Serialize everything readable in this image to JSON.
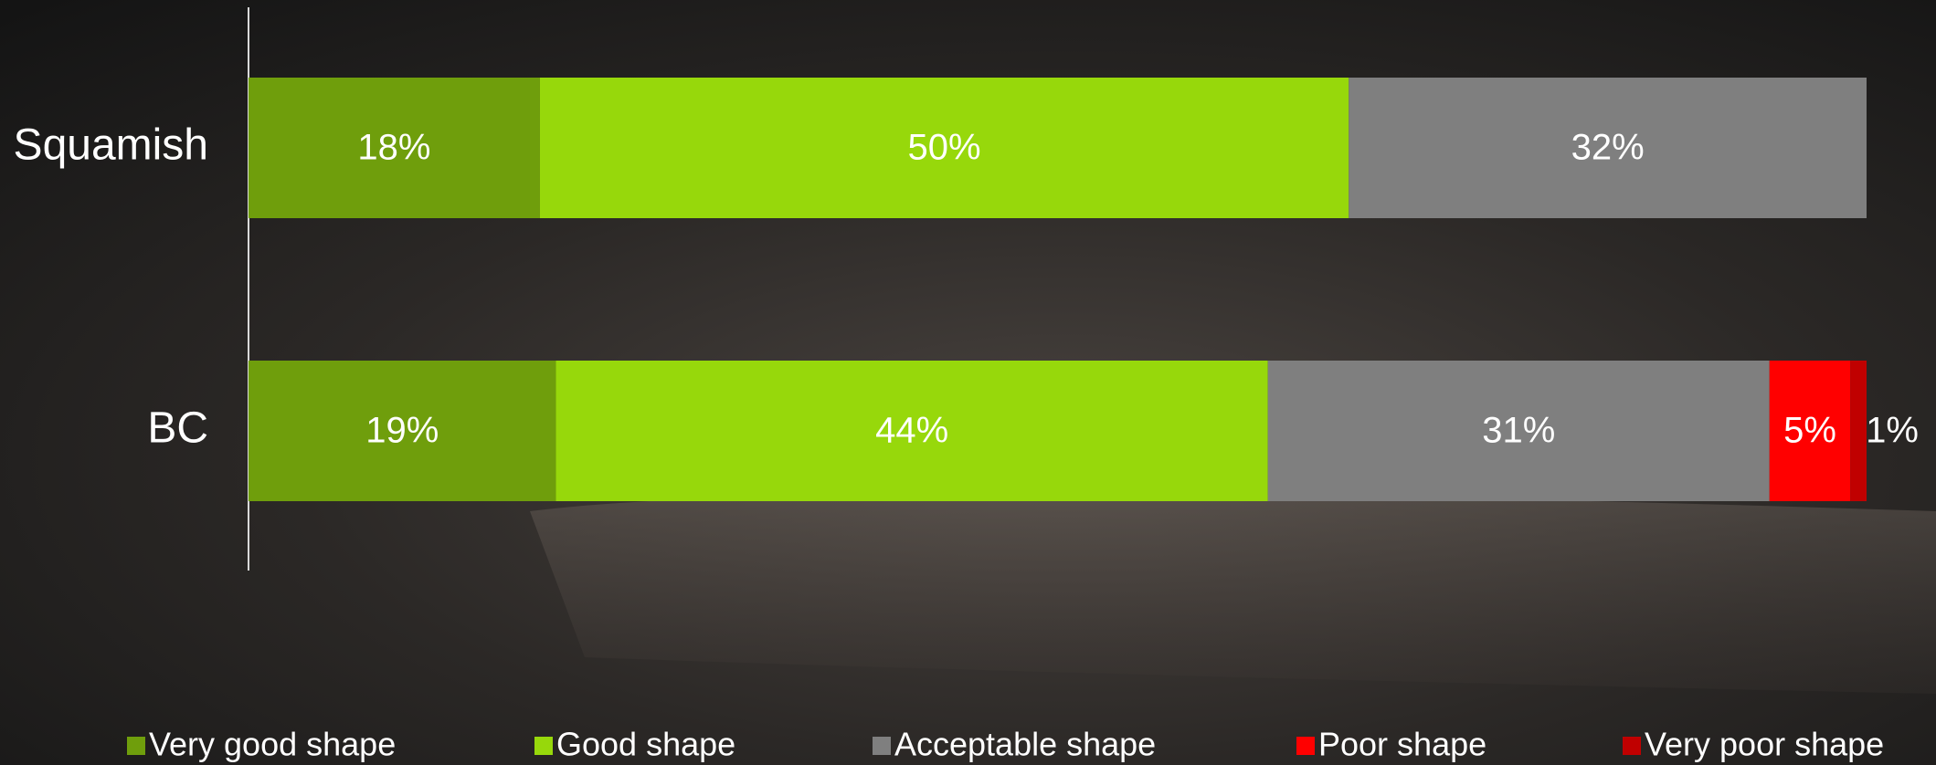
{
  "chart_data": {
    "type": "stacked-bar-horizontal",
    "categories": [
      "Squamish",
      "BC"
    ],
    "series": [
      {
        "name": "Very good shape",
        "color": "#6f9e0c",
        "values": [
          18,
          19
        ],
        "value_labels": [
          "18%",
          "19%"
        ]
      },
      {
        "name": "Good shape",
        "color": "#97d80b",
        "values": [
          50,
          44
        ],
        "value_labels": [
          "50%",
          "44%"
        ]
      },
      {
        "name": "Acceptable shape",
        "color": "#7f7f7f",
        "values": [
          32,
          31
        ],
        "value_labels": [
          "32%",
          "31%"
        ]
      },
      {
        "name": "Poor shape",
        "color": "#ff0000",
        "values": [
          null,
          5
        ],
        "value_labels": [
          null,
          "5%"
        ]
      },
      {
        "name": "Very poor shape",
        "color": "#c00000",
        "values": [
          null,
          1
        ],
        "value_labels": [
          null,
          "1%"
        ]
      }
    ],
    "xlim": [
      0,
      100
    ],
    "legend": "bottom"
  }
}
